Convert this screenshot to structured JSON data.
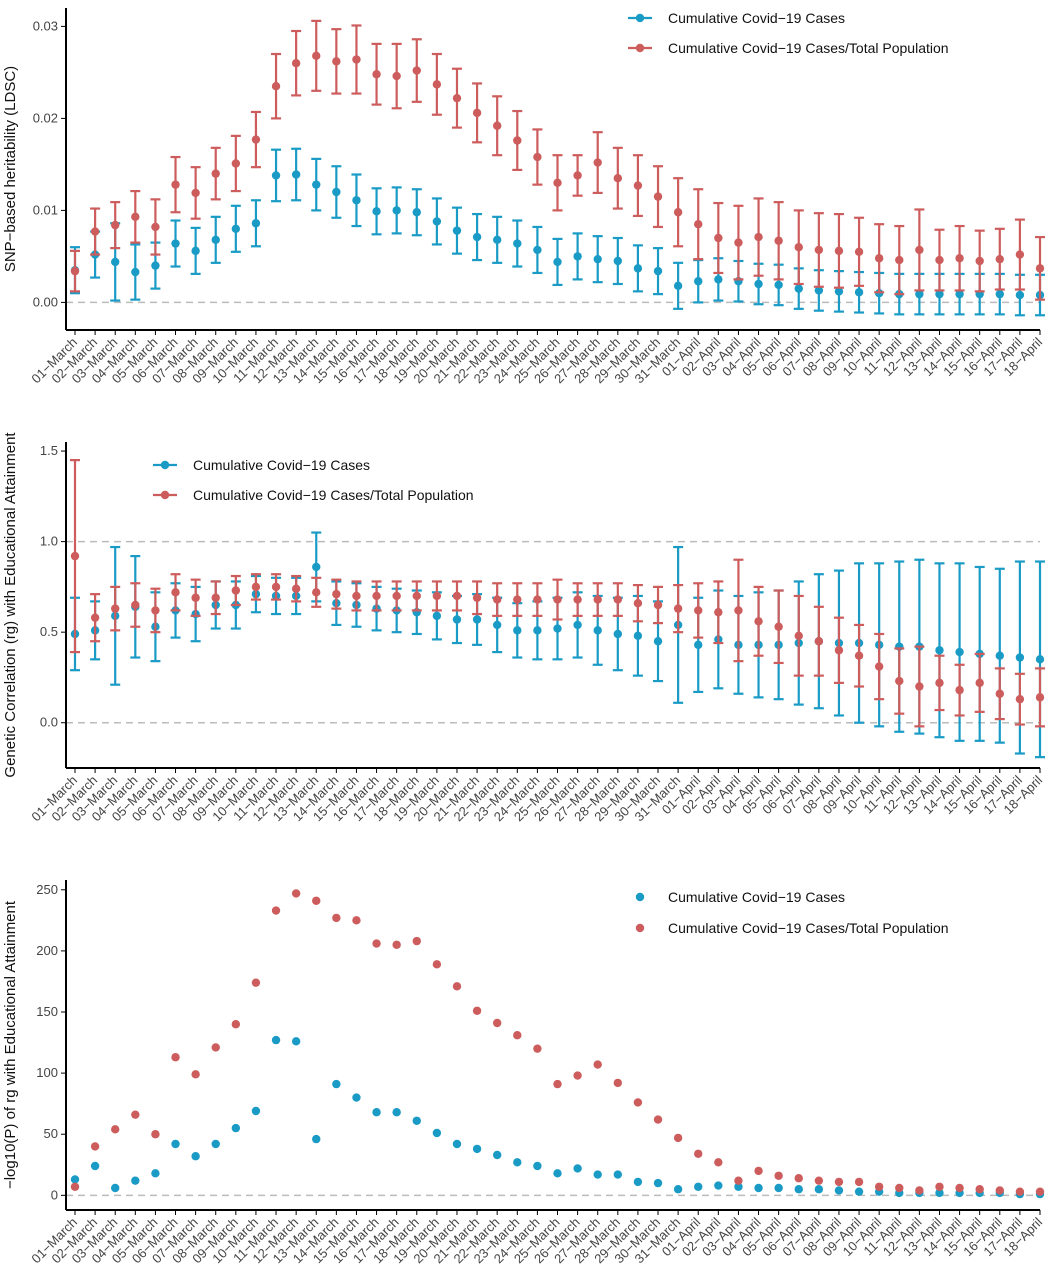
{
  "colors": {
    "blue": "#1a9bc6",
    "red": "#cd5c5c",
    "zero_line": "#bbbbbb",
    "axis": "#000000",
    "tick_text": "#444444"
  },
  "dates": [
    "01−March",
    "02−March",
    "03−March",
    "04−March",
    "05−March",
    "06−March",
    "07−March",
    "08−March",
    "09−March",
    "10−March",
    "11−March",
    "12−March",
    "13−March",
    "14−March",
    "15−March",
    "16−March",
    "17−March",
    "18−March",
    "19−March",
    "20−March",
    "21−March",
    "22−March",
    "23−March",
    "24−March",
    "25−March",
    "26−March",
    "27−March",
    "28−March",
    "29−March",
    "30−March",
    "31−March",
    "01−April",
    "02−April",
    "03−April",
    "04−April",
    "05−April",
    "06−April",
    "07−April",
    "08−April",
    "09−April",
    "10−April",
    "11−April",
    "12−April",
    "13−April",
    "14−April",
    "15−April",
    "16−April",
    "17−April",
    "18−April"
  ],
  "chart_data": [
    {
      "type": "errorbar",
      "ylabel": "SNP−based heritability (LDSC)",
      "ylim": [
        -0.003,
        0.032
      ],
      "yticks": [
        0.0,
        0.01,
        0.02,
        0.03
      ],
      "ytick_labels": [
        "0.00",
        "0.01",
        "0.02",
        "0.03"
      ],
      "reference_lines": [
        0
      ],
      "legend_position": "top-right",
      "series": [
        {
          "name": "Cumulative Covid−19 Cases",
          "color_key": "blue",
          "values": [
            0.0035,
            0.0052,
            0.0044,
            0.0033,
            0.004,
            0.0064,
            0.0056,
            0.0068,
            0.008,
            0.0086,
            0.0138,
            0.0139,
            0.0128,
            0.012,
            0.0111,
            0.0099,
            0.01,
            0.0098,
            0.0088,
            0.0078,
            0.0071,
            0.0068,
            0.0064,
            0.0057,
            0.0044,
            0.005,
            0.0047,
            0.0045,
            0.0037,
            0.0034,
            0.0018,
            0.0023,
            0.0025,
            0.0023,
            0.002,
            0.0019,
            0.0015,
            0.0013,
            0.0012,
            0.0011,
            0.001,
            0.0009,
            0.0009,
            0.0009,
            0.0009,
            0.0009,
            0.0009,
            0.0008,
            0.0008
          ],
          "errors": [
            0.0025,
            0.0025,
            0.0042,
            0.003,
            0.0025,
            0.0025,
            0.0025,
            0.0025,
            0.0025,
            0.0025,
            0.0028,
            0.0028,
            0.0028,
            0.0028,
            0.0028,
            0.0025,
            0.0025,
            0.0025,
            0.0025,
            0.0025,
            0.0025,
            0.0025,
            0.0025,
            0.0025,
            0.0025,
            0.0025,
            0.0025,
            0.0025,
            0.0025,
            0.0025,
            0.0025,
            0.0023,
            0.0023,
            0.0022,
            0.0022,
            0.0022,
            0.0022,
            0.0022,
            0.0022,
            0.0022,
            0.0022,
            0.0022,
            0.0022,
            0.0022,
            0.0022,
            0.0022,
            0.0022,
            0.0022,
            0.0022
          ]
        },
        {
          "name": "Cumulative Covid−19 Cases/Total Population",
          "color_key": "red",
          "values": [
            0.0034,
            0.0077,
            0.0084,
            0.0093,
            0.0082,
            0.0128,
            0.0119,
            0.014,
            0.0151,
            0.0177,
            0.0235,
            0.026,
            0.0268,
            0.0262,
            0.0264,
            0.0248,
            0.0246,
            0.0252,
            0.0237,
            0.0222,
            0.0206,
            0.0192,
            0.0176,
            0.0158,
            0.013,
            0.0138,
            0.0152,
            0.0135,
            0.0127,
            0.0115,
            0.0098,
            0.0085,
            0.007,
            0.0065,
            0.0071,
            0.0067,
            0.006,
            0.0057,
            0.0056,
            0.0055,
            0.0048,
            0.0046,
            0.0057,
            0.0046,
            0.0048,
            0.0045,
            0.0047,
            0.0052,
            0.0037
          ],
          "errors": [
            0.0022,
            0.0025,
            0.0025,
            0.0028,
            0.003,
            0.003,
            0.0028,
            0.0028,
            0.003,
            0.003,
            0.0035,
            0.0035,
            0.0038,
            0.0035,
            0.0037,
            0.0033,
            0.0035,
            0.0034,
            0.0033,
            0.0032,
            0.0032,
            0.0032,
            0.0032,
            0.003,
            0.003,
            0.0022,
            0.0033,
            0.0033,
            0.0033,
            0.0033,
            0.0037,
            0.0038,
            0.0038,
            0.004,
            0.0042,
            0.0042,
            0.004,
            0.004,
            0.004,
            0.0037,
            0.0037,
            0.0037,
            0.0044,
            0.0033,
            0.0035,
            0.0033,
            0.0033,
            0.0038,
            0.0034
          ]
        }
      ]
    },
    {
      "type": "errorbar",
      "ylabel": "Genetic Correlation (rg) with Educational Attainment",
      "ylim": [
        -0.25,
        1.55
      ],
      "yticks": [
        0.0,
        0.5,
        1.0,
        1.5
      ],
      "ytick_labels": [
        "0.0",
        "0.5",
        "1.0",
        "1.5"
      ],
      "reference_lines": [
        0,
        1
      ],
      "legend_position": "top-left",
      "series": [
        {
          "name": "Cumulative Covid−19 Cases",
          "color_key": "blue",
          "values": [
            0.49,
            0.51,
            0.59,
            0.64,
            0.53,
            0.62,
            0.6,
            0.65,
            0.65,
            0.71,
            0.7,
            0.7,
            0.86,
            0.66,
            0.65,
            0.63,
            0.62,
            0.61,
            0.59,
            0.57,
            0.57,
            0.54,
            0.51,
            0.51,
            0.52,
            0.54,
            0.51,
            0.49,
            0.48,
            0.45,
            0.54,
            0.43,
            0.46,
            0.43,
            0.43,
            0.43,
            0.44,
            0.45,
            0.44,
            0.44,
            0.43,
            0.42,
            0.42,
            0.4,
            0.39,
            0.38,
            0.37,
            0.36,
            0.35
          ],
          "errors": [
            0.2,
            0.16,
            0.38,
            0.28,
            0.19,
            0.15,
            0.15,
            0.13,
            0.13,
            0.1,
            0.1,
            0.1,
            0.19,
            0.12,
            0.12,
            0.12,
            0.12,
            0.12,
            0.13,
            0.13,
            0.14,
            0.15,
            0.15,
            0.16,
            0.17,
            0.18,
            0.19,
            0.2,
            0.22,
            0.22,
            0.43,
            0.26,
            0.27,
            0.27,
            0.29,
            0.3,
            0.34,
            0.37,
            0.4,
            0.44,
            0.45,
            0.47,
            0.48,
            0.48,
            0.49,
            0.48,
            0.48,
            0.53,
            0.54
          ]
        },
        {
          "name": "Cumulative Covid−19 Cases/Total Population",
          "color_key": "red",
          "values": [
            0.92,
            0.58,
            0.63,
            0.65,
            0.62,
            0.72,
            0.69,
            0.69,
            0.73,
            0.75,
            0.75,
            0.74,
            0.72,
            0.71,
            0.7,
            0.7,
            0.7,
            0.7,
            0.7,
            0.7,
            0.69,
            0.68,
            0.68,
            0.68,
            0.68,
            0.68,
            0.68,
            0.68,
            0.66,
            0.65,
            0.63,
            0.62,
            0.61,
            0.62,
            0.56,
            0.53,
            0.48,
            0.45,
            0.4,
            0.37,
            0.31,
            0.23,
            0.2,
            0.22,
            0.18,
            0.22,
            0.16,
            0.13,
            0.14
          ],
          "errors": [
            0.53,
            0.13,
            0.12,
            0.12,
            0.12,
            0.1,
            0.1,
            0.09,
            0.08,
            0.07,
            0.07,
            0.07,
            0.08,
            0.08,
            0.08,
            0.08,
            0.08,
            0.08,
            0.08,
            0.08,
            0.09,
            0.09,
            0.09,
            0.09,
            0.11,
            0.09,
            0.09,
            0.09,
            0.1,
            0.1,
            0.13,
            0.15,
            0.17,
            0.28,
            0.19,
            0.2,
            0.22,
            0.19,
            0.18,
            0.17,
            0.18,
            0.18,
            0.22,
            0.15,
            0.14,
            0.16,
            0.14,
            0.14,
            0.16
          ]
        }
      ]
    },
    {
      "type": "scatter",
      "ylabel": "−log10(P) of rg with Educational Attainment",
      "ylim": [
        -12,
        258
      ],
      "yticks": [
        0,
        50,
        100,
        150,
        200,
        250
      ],
      "ytick_labels": [
        "0",
        "50",
        "100",
        "150",
        "200",
        "250"
      ],
      "reference_lines": [
        0
      ],
      "legend_position": "top-right",
      "series": [
        {
          "name": "Cumulative Covid−19 Cases",
          "color_key": "blue",
          "values": [
            13,
            24,
            6,
            12,
            18,
            42,
            32,
            42,
            55,
            69,
            127,
            126,
            46,
            91,
            80,
            68,
            68,
            61,
            51,
            42,
            38,
            33,
            27,
            24,
            18,
            22,
            17,
            17,
            11,
            10,
            5,
            7,
            8,
            7,
            6,
            6,
            5,
            5,
            4,
            3,
            3,
            2,
            2,
            2,
            2,
            2,
            2,
            1,
            1
          ]
        },
        {
          "name": "Cumulative Covid−19 Cases/Total Population",
          "color_key": "red",
          "values": [
            7,
            40,
            54,
            66,
            50,
            113,
            99,
            121,
            140,
            174,
            233,
            247,
            241,
            227,
            225,
            206,
            205,
            208,
            189,
            171,
            151,
            141,
            131,
            120,
            91,
            98,
            107,
            92,
            76,
            62,
            47,
            34,
            27,
            12,
            20,
            16,
            14,
            12,
            11,
            11,
            7,
            6,
            4,
            7,
            6,
            5,
            4,
            3,
            3
          ]
        }
      ]
    }
  ]
}
